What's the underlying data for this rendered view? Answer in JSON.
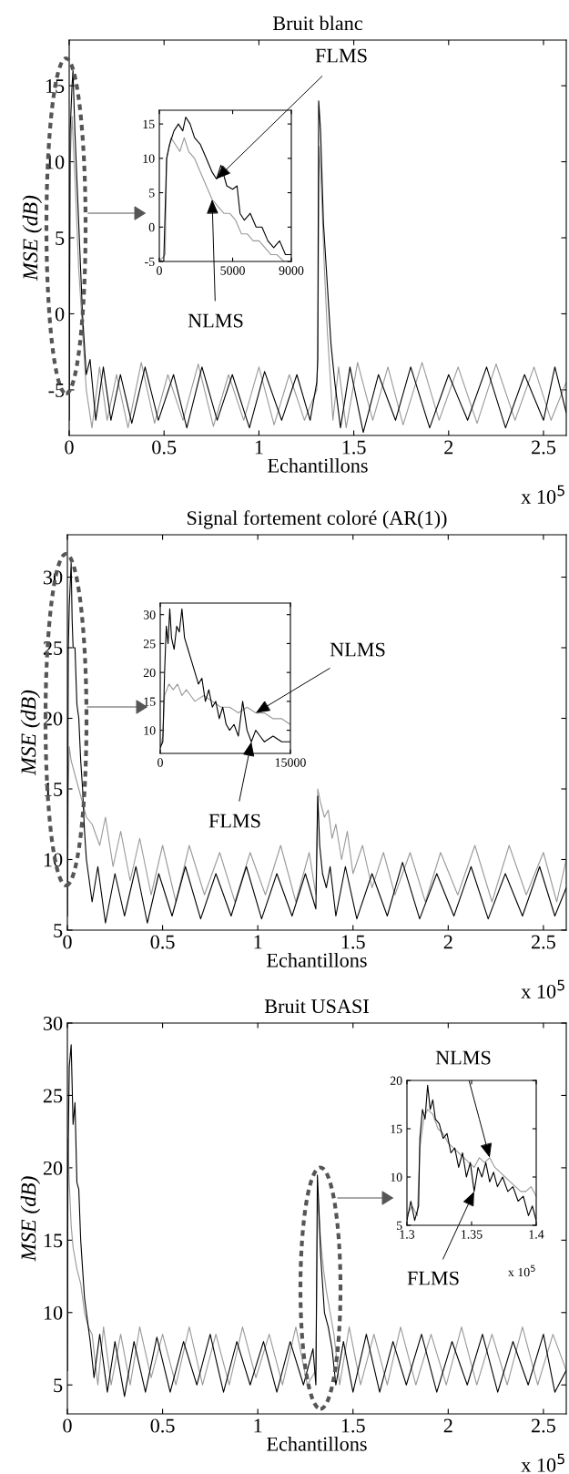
{
  "chart_data": [
    {
      "type": "line",
      "title": "Bruit blanc",
      "xlabel": "Echantillons",
      "ylabel": "MSE (dB)",
      "annotations": [
        "x 10$^{5}$"
      ],
      "xlim": [
        0,
        2.62
      ],
      "xticks": [
        0,
        0.5,
        1,
        1.5,
        2,
        2.5
      ],
      "ylim": [
        -8,
        18
      ],
      "yticks": [
        -5,
        0,
        5,
        10,
        15
      ],
      "series": [
        {
          "color": "#999999",
          "x": [
            0,
            0.005,
            0.015,
            0.03,
            0.04,
            0.05,
            0.06,
            0.07,
            0.08,
            0.09,
            0.12,
            0.16,
            0.2,
            0.25,
            0.31,
            0.38,
            0.45,
            0.52,
            0.6,
            0.68,
            0.76,
            0.84,
            0.92,
            1.0,
            1.08,
            1.16,
            1.24,
            1.305,
            1.31,
            1.318,
            1.33,
            1.345,
            1.36,
            1.375,
            1.39,
            1.42,
            1.46,
            1.52,
            1.6,
            1.68,
            1.76,
            1.86,
            1.95,
            2.05,
            2.15,
            2.25,
            2.35,
            2.45,
            2.54,
            2.62
          ],
          "values": [
            -7,
            10,
            13,
            9,
            6,
            3,
            1,
            -1,
            -3,
            -5,
            -7.5,
            -3.5,
            -7,
            -4,
            -7.5,
            -3.2,
            -7.2,
            -4,
            -7,
            -3.3,
            -7.4,
            -4,
            -7,
            -3.5,
            -7.3,
            -4,
            -7,
            -5,
            -3,
            11,
            8,
            3,
            -1,
            -4,
            -7,
            -3.5,
            -7.5,
            -3.2,
            -7,
            -3.5,
            -7.3,
            -3.2,
            -7,
            -3.5,
            -7.2,
            -3.3,
            -7,
            -3.5,
            -7,
            -4.5
          ]
        },
        {
          "color": "#000000",
          "x": [
            0,
            0.005,
            0.015,
            0.02,
            0.03,
            0.04,
            0.05,
            0.06,
            0.07,
            0.08,
            0.09,
            0.11,
            0.14,
            0.18,
            0.22,
            0.27,
            0.33,
            0.4,
            0.47,
            0.55,
            0.62,
            0.7,
            0.78,
            0.86,
            0.95,
            1.03,
            1.12,
            1.2,
            1.27,
            1.305,
            1.31,
            1.315,
            1.325,
            1.34,
            1.36,
            1.38,
            1.4,
            1.43,
            1.48,
            1.55,
            1.63,
            1.72,
            1.8,
            1.9,
            2.0,
            2.1,
            2.2,
            2.3,
            2.4,
            2.5,
            2.56,
            2.62
          ],
          "values": [
            -7,
            12,
            15,
            16,
            12,
            9,
            6,
            3,
            0,
            -2,
            -4,
            -3,
            -7,
            -3.5,
            -7,
            -4,
            -7.2,
            -3.5,
            -7,
            -4,
            -7.5,
            -3.5,
            -7,
            -4,
            -7.5,
            -3.8,
            -7,
            -4,
            -7,
            -4.5,
            -3,
            14,
            12,
            6,
            2,
            -2,
            -4.5,
            -7.5,
            -3.5,
            -7.8,
            -4,
            -7,
            -3.5,
            -7.5,
            -4,
            -7,
            -3.5,
            -7.5,
            -4,
            -7,
            -3.5,
            -6.5
          ]
        }
      ]
    },
    {
      "type": "line",
      "annotations": [
        {
          "text": "FLMS",
          "x": 3900,
          "y": 7
        },
        {
          "text": "NLMS",
          "x": 3600,
          "y": 4
        }
      ],
      "xlim": [
        0,
        9000
      ],
      "xticks": [
        0,
        5000,
        9000
      ],
      "ylim": [
        -5,
        17
      ],
      "yticks": [
        -5,
        0,
        5,
        10,
        15
      ],
      "series": [
        {
          "color": "#999999",
          "x": [
            0,
            400,
            500,
            800,
            1100,
            1400,
            1700,
            2000,
            2400,
            2800,
            3200,
            3600,
            4000,
            4400,
            4800,
            5200,
            5600,
            6000,
            6400,
            6800,
            7200,
            7600,
            8000,
            8500,
            9000
          ],
          "values": [
            -5,
            -4,
            10,
            13,
            12,
            11,
            13,
            11,
            10,
            8,
            6,
            4,
            3,
            2,
            2,
            1,
            -1,
            -1,
            -2,
            -2,
            -3,
            -4,
            -4,
            -5,
            -5
          ]
        },
        {
          "color": "#000000",
          "x": [
            0,
            300,
            500,
            700,
            1000,
            1300,
            1600,
            1800,
            2100,
            2400,
            2800,
            3200,
            3600,
            3900,
            4200,
            4600,
            5000,
            5300,
            5500,
            5800,
            6200,
            6600,
            7000,
            7400,
            7800,
            8200,
            8600,
            9000
          ],
          "values": [
            -5,
            -5,
            10,
            12,
            14,
            15,
            14,
            16,
            15,
            13,
            12,
            10,
            8,
            7,
            9,
            6,
            5.5,
            6,
            2,
            1,
            2,
            0,
            0,
            -2,
            -3,
            -2,
            -4,
            -4
          ]
        }
      ]
    },
    {
      "type": "line",
      "title": "Signal fortement coloré (AR(1))",
      "xlabel": "Echantillons",
      "ylabel": "MSE (dB)",
      "annotations": [
        "x 10$^{5}$"
      ],
      "xlim": [
        0,
        2.62
      ],
      "xticks": [
        0,
        0.5,
        1,
        1.5,
        2,
        2.5
      ],
      "ylim": [
        5,
        33
      ],
      "yticks": [
        5,
        10,
        15,
        20,
        25,
        30
      ],
      "series": [
        {
          "color": "#999999",
          "x": [
            0,
            0.005,
            0.01,
            0.02,
            0.04,
            0.06,
            0.08,
            0.1,
            0.13,
            0.17,
            0.2,
            0.24,
            0.28,
            0.33,
            0.38,
            0.44,
            0.5,
            0.57,
            0.64,
            0.72,
            0.8,
            0.88,
            0.96,
            1.04,
            1.12,
            1.2,
            1.27,
            1.305,
            1.315,
            1.33,
            1.35,
            1.37,
            1.39,
            1.41,
            1.44,
            1.47,
            1.5,
            1.55,
            1.6,
            1.66,
            1.72,
            1.8,
            1.88,
            1.96,
            2.05,
            2.14,
            2.23,
            2.32,
            2.41,
            2.5,
            2.57,
            2.62
          ],
          "values": [
            6,
            15,
            18,
            17,
            16,
            15,
            14,
            13,
            12.5,
            11,
            13,
            9.5,
            12,
            8.5,
            11.5,
            7.5,
            11,
            7,
            11,
            7.5,
            10.5,
            7,
            10.5,
            7.5,
            11,
            7,
            10.5,
            7.5,
            15,
            14,
            13,
            13.5,
            11.5,
            12.5,
            10,
            12,
            9,
            11,
            8,
            10.5,
            7.5,
            10.5,
            7,
            10.5,
            7.5,
            11,
            7,
            11,
            7.5,
            10.5,
            7,
            10
          ]
        },
        {
          "color": "#000000",
          "x": [
            0,
            0.005,
            0.01,
            0.02,
            0.025,
            0.03,
            0.04,
            0.05,
            0.06,
            0.07,
            0.08,
            0.09,
            0.1,
            0.11,
            0.13,
            0.16,
            0.2,
            0.25,
            0.3,
            0.36,
            0.42,
            0.48,
            0.55,
            0.62,
            0.7,
            0.78,
            0.86,
            0.94,
            1.02,
            1.1,
            1.18,
            1.25,
            1.305,
            1.315,
            1.325,
            1.34,
            1.36,
            1.38,
            1.41,
            1.46,
            1.52,
            1.6,
            1.68,
            1.76,
            1.85,
            1.94,
            2.03,
            2.12,
            2.21,
            2.3,
            2.39,
            2.48,
            2.56,
            2.62
          ],
          "values": [
            6,
            25,
            28,
            31,
            27,
            25,
            25,
            21,
            20,
            17,
            15,
            12,
            10,
            9,
            7,
            9.5,
            5.5,
            9,
            6,
            9.5,
            5.5,
            9,
            6,
            9.5,
            5.8,
            9,
            6,
            9.5,
            5.8,
            9,
            6,
            9,
            6.5,
            14.5,
            11,
            9,
            8,
            9.5,
            6,
            9.5,
            5.8,
            9,
            6,
            9.8,
            5.8,
            9,
            6,
            9.5,
            5.8,
            9,
            6,
            9.5,
            6,
            8
          ]
        }
      ]
    },
    {
      "type": "line",
      "annotations": [
        {
          "text": "NLMS",
          "x": 11000,
          "y": 13
        },
        {
          "text": "FLMS",
          "x": 10500,
          "y": 8
        }
      ],
      "xlim": [
        0,
        15000
      ],
      "xticks": [
        0,
        15000
      ],
      "ylim": [
        6,
        32
      ],
      "yticks": [
        10,
        15,
        20,
        25,
        30
      ],
      "series": [
        {
          "color": "#999999",
          "x": [
            0,
            300,
            500,
            1000,
            1500,
            2000,
            2500,
            3000,
            3500,
            4000,
            5000,
            6000,
            7000,
            8000,
            9000,
            10000,
            11000,
            12000,
            13000,
            14000,
            15000
          ],
          "values": [
            7,
            9,
            16,
            18,
            17,
            18,
            16,
            17,
            16,
            15,
            16,
            15,
            14,
            14,
            13,
            14,
            13,
            13,
            12,
            12,
            11
          ]
        },
        {
          "color": "#000000",
          "x": [
            0,
            300,
            500,
            700,
            900,
            1100,
            1300,
            1600,
            1900,
            2200,
            2500,
            2800,
            3200,
            3600,
            4000,
            4400,
            4800,
            5200,
            5600,
            6000,
            6400,
            6800,
            7200,
            7600,
            8000,
            8500,
            9000,
            9500,
            10000,
            10500,
            11000,
            11500,
            12000,
            13000,
            14000,
            15000
          ],
          "values": [
            7,
            8,
            20,
            28,
            25,
            31,
            26,
            24,
            28,
            27,
            31,
            26,
            24,
            22,
            20,
            18,
            19,
            15,
            17,
            14,
            15,
            12,
            14,
            11,
            10,
            11,
            9,
            15,
            10,
            8,
            10,
            9,
            8,
            9,
            8,
            8
          ]
        }
      ]
    },
    {
      "type": "line",
      "title": "Bruit USASI",
      "xlabel": "Echantillons",
      "ylabel": "MSE (dB)",
      "annotations": [
        "x 10$^{5}$"
      ],
      "xlim": [
        0,
        2.62
      ],
      "xticks": [
        0,
        0.5,
        1,
        1.5,
        2,
        2.5
      ],
      "ylim": [
        3,
        30
      ],
      "yticks": [
        5,
        10,
        15,
        20,
        25,
        30
      ],
      "series": [
        {
          "color": "#999999",
          "x": [
            0,
            0.003,
            0.01,
            0.02,
            0.03,
            0.05,
            0.07,
            0.09,
            0.11,
            0.13,
            0.16,
            0.19,
            0.23,
            0.28,
            0.33,
            0.38,
            0.44,
            0.5,
            0.57,
            0.64,
            0.71,
            0.78,
            0.85,
            0.92,
            0.99,
            1.06,
            1.13,
            1.2,
            1.26,
            1.305,
            1.315,
            1.33,
            1.345,
            1.36,
            1.38,
            1.4,
            1.43,
            1.48,
            1.54,
            1.61,
            1.68,
            1.75,
            1.83,
            1.91,
            1.99,
            2.07,
            2.15,
            2.23,
            2.31,
            2.39,
            2.47,
            2.55,
            2.62
          ],
          "values": [
            6,
            22,
            19,
            16,
            14.5,
            13,
            12,
            10,
            9,
            8.5,
            5,
            9,
            5,
            8.5,
            5,
            9,
            5.5,
            8.5,
            5,
            9,
            5,
            8.5,
            5,
            9,
            5.5,
            8.5,
            5,
            9,
            5,
            6,
            18,
            15,
            13,
            11.5,
            10,
            8.5,
            5,
            9,
            5,
            8.5,
            5,
            9,
            5,
            8.5,
            5,
            9,
            5,
            8.5,
            5,
            9,
            5,
            8.5,
            6
          ]
        },
        {
          "color": "#000000",
          "x": [
            0,
            0.003,
            0.01,
            0.02,
            0.03,
            0.04,
            0.05,
            0.06,
            0.07,
            0.08,
            0.09,
            0.1,
            0.12,
            0.14,
            0.17,
            0.21,
            0.25,
            0.3,
            0.35,
            0.41,
            0.47,
            0.54,
            0.61,
            0.68,
            0.75,
            0.82,
            0.89,
            0.96,
            1.03,
            1.1,
            1.17,
            1.24,
            1.29,
            1.305,
            1.313,
            1.32,
            1.33,
            1.34,
            1.35,
            1.37,
            1.39,
            1.41,
            1.45,
            1.5,
            1.57,
            1.64,
            1.71,
            1.78,
            1.86,
            1.94,
            2.02,
            2.1,
            2.18,
            2.26,
            2.34,
            2.42,
            2.5,
            2.56,
            2.62
          ],
          "values": [
            6,
            20,
            27,
            28.5,
            23,
            24.5,
            19,
            18.5,
            15,
            13,
            11,
            10,
            8,
            5.5,
            8.5,
            4.5,
            8,
            4.2,
            8,
            4.5,
            8.3,
            4.5,
            8,
            5,
            8.5,
            4.5,
            8,
            5,
            8,
            4.5,
            8,
            5,
            7.5,
            5,
            19.5,
            17.5,
            14,
            12,
            10,
            9,
            7.5,
            5,
            8,
            4.5,
            8.5,
            4.5,
            8,
            5,
            8.5,
            4.5,
            8,
            5,
            8.5,
            4.5,
            8,
            5,
            8.5,
            4.5,
            6
          ]
        }
      ]
    },
    {
      "type": "line",
      "annotations": [
        {
          "text": "NLMS",
          "x": 1.364,
          "y": 12
        },
        {
          "text": "FLMS",
          "x": 1.352,
          "y": 8.5
        },
        "x 10$^{5}$"
      ],
      "xlim": [
        1.3,
        1.4
      ],
      "xticks": [
        1.3,
        1.35,
        1.4
      ],
      "ylim": [
        5,
        20
      ],
      "yticks": [
        5,
        10,
        15,
        20
      ],
      "series": [
        {
          "color": "#999999",
          "x": [
            1.3,
            1.304,
            1.308,
            1.31,
            1.313,
            1.316,
            1.32,
            1.324,
            1.328,
            1.332,
            1.336,
            1.34,
            1.344,
            1.348,
            1.352,
            1.356,
            1.36,
            1.364,
            1.368,
            1.372,
            1.376,
            1.38,
            1.384,
            1.388,
            1.392,
            1.396,
            1.4
          ],
          "values": [
            6,
            7,
            6,
            13,
            16,
            17,
            16.5,
            15,
            14.5,
            13.5,
            13,
            12.5,
            12,
            11.5,
            11,
            12,
            11.5,
            12,
            11,
            10.5,
            10,
            9.5,
            9,
            8.5,
            8.5,
            9,
            8
          ]
        },
        {
          "color": "#000000",
          "x": [
            1.3,
            1.303,
            1.306,
            1.309,
            1.31,
            1.312,
            1.314,
            1.316,
            1.318,
            1.32,
            1.322,
            1.325,
            1.328,
            1.331,
            1.334,
            1.337,
            1.34,
            1.343,
            1.346,
            1.349,
            1.352,
            1.355,
            1.358,
            1.361,
            1.364,
            1.367,
            1.37,
            1.374,
            1.378,
            1.382,
            1.386,
            1.39,
            1.394,
            1.397,
            1.4
          ],
          "values": [
            5.5,
            7.5,
            5.5,
            7,
            14,
            17,
            16,
            19.5,
            17,
            18,
            16,
            15.5,
            14,
            14.5,
            12.5,
            13,
            11,
            12.5,
            10,
            11.5,
            8.5,
            11,
            10,
            11.5,
            9.5,
            10.5,
            9,
            10,
            8.5,
            9,
            7.5,
            8,
            6,
            7,
            5.5
          ]
        }
      ]
    }
  ]
}
